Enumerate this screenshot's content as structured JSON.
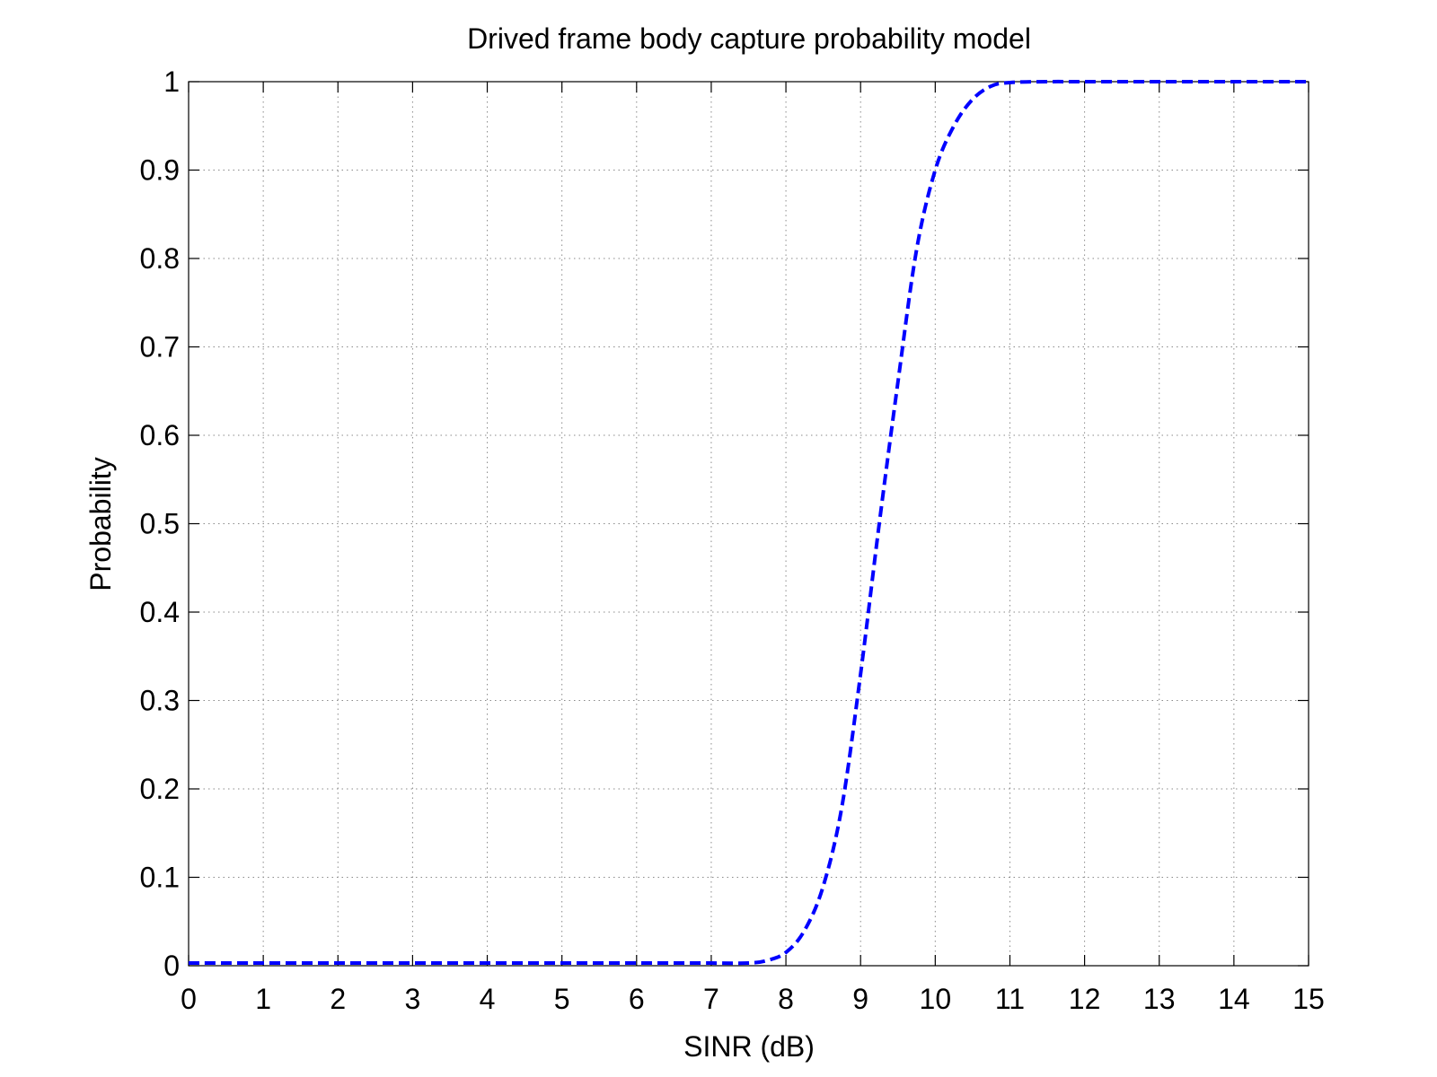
{
  "chart_data": {
    "type": "line",
    "title": "Drived frame body capture probability model",
    "xlabel": "SINR (dB)",
    "ylabel": "Probability",
    "xlim": [
      0,
      15
    ],
    "ylim": [
      0,
      1
    ],
    "xticks": [
      "0",
      "1",
      "2",
      "3",
      "4",
      "5",
      "6",
      "7",
      "8",
      "9",
      "10",
      "11",
      "12",
      "13",
      "14",
      "15"
    ],
    "yticks": [
      "0",
      "0.1",
      "0.2",
      "0.3",
      "0.4",
      "0.5",
      "0.6",
      "0.7",
      "0.8",
      "0.9",
      "1"
    ],
    "grid": true,
    "series": [
      {
        "color": "#0000ff",
        "line_style": "dashed",
        "x": [
          0,
          1,
          2,
          3,
          4,
          5,
          6,
          7,
          7.5,
          7.75,
          8,
          8.25,
          8.5,
          8.75,
          9,
          9.25,
          9.5,
          9.75,
          10,
          10.25,
          10.5,
          10.75,
          11,
          11.5,
          12,
          13,
          14,
          15
        ],
        "y": [
          0.003,
          0.003,
          0.003,
          0.003,
          0.003,
          0.003,
          0.003,
          0.003,
          0.003,
          0.006,
          0.015,
          0.04,
          0.09,
          0.18,
          0.33,
          0.5,
          0.66,
          0.81,
          0.9,
          0.95,
          0.98,
          0.995,
          0.999,
          1.0,
          1.0,
          1.0,
          1.0,
          1.0
        ]
      }
    ]
  }
}
